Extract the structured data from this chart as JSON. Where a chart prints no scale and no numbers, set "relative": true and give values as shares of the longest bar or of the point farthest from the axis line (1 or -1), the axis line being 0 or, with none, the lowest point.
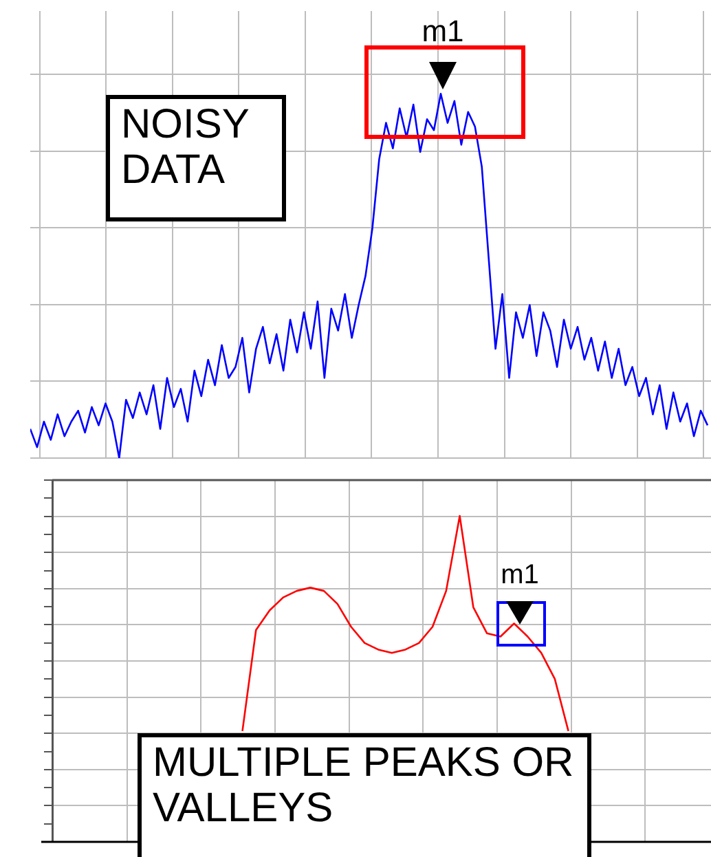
{
  "chart_data": [
    {
      "type": "line",
      "relative": true,
      "grid": true,
      "tick_labels": false,
      "annotations": [
        "m1",
        "NOISY DATA"
      ],
      "categories": [
        null,
        null,
        null,
        null,
        null,
        null,
        null,
        null,
        null,
        null,
        null,
        null,
        null,
        null,
        null,
        null,
        null,
        null,
        null,
        null,
        null,
        null,
        null,
        null,
        null,
        null,
        null,
        null,
        null,
        null,
        null,
        null,
        null,
        null,
        null,
        null,
        null,
        null,
        null,
        null,
        null,
        null,
        null,
        null,
        null,
        null,
        null,
        null,
        null,
        null,
        null,
        null,
        null,
        null,
        null,
        null,
        null,
        null,
        null,
        null,
        null,
        null,
        null,
        null,
        null,
        null,
        null,
        null,
        null,
        null,
        null,
        null,
        null,
        null,
        null,
        null,
        null,
        null,
        null,
        null,
        null,
        null,
        null,
        null,
        null,
        null,
        null,
        null,
        null,
        null,
        null,
        null,
        null,
        null,
        null,
        null,
        null,
        null,
        null,
        null
      ],
      "series": [
        {
          "color": "#0000ff",
          "values": [
            0.08,
            0.03,
            0.1,
            0.05,
            0.12,
            0.06,
            0.1,
            0.13,
            0.07,
            0.14,
            0.09,
            0.15,
            0.1,
            0.0,
            0.16,
            0.11,
            0.18,
            0.12,
            0.2,
            0.08,
            0.22,
            0.14,
            0.19,
            0.1,
            0.24,
            0.17,
            0.27,
            0.2,
            0.31,
            0.22,
            0.25,
            0.33,
            0.18,
            0.3,
            0.36,
            0.26,
            0.34,
            0.24,
            0.38,
            0.29,
            0.4,
            0.3,
            0.43,
            0.22,
            0.41,
            0.35,
            0.45,
            0.33,
            0.42,
            0.5,
            0.63,
            0.82,
            0.92,
            0.85,
            0.96,
            0.88,
            0.97,
            0.84,
            0.93,
            0.9,
            1.0,
            0.92,
            0.98,
            0.86,
            0.95,
            0.91,
            0.8,
            0.55,
            0.3,
            0.45,
            0.22,
            0.4,
            0.33,
            0.42,
            0.28,
            0.4,
            0.35,
            0.25,
            0.38,
            0.3,
            0.36,
            0.27,
            0.33,
            0.24,
            0.32,
            0.22,
            0.3,
            0.2,
            0.25,
            0.17,
            0.22,
            0.12,
            0.2,
            0.08,
            0.18,
            0.1,
            0.15,
            0.06,
            0.13,
            0.09
          ]
        }
      ]
    },
    {
      "type": "line",
      "relative": true,
      "grid": true,
      "tick_labels": false,
      "annotations": [
        "m1",
        "MULTIPLE PEAKS OR VALLEYS"
      ],
      "categories": [
        null,
        null,
        null,
        null,
        null,
        null,
        null,
        null,
        null,
        null,
        null,
        null,
        null,
        null,
        null,
        null,
        null,
        null,
        null,
        null,
        null,
        null,
        null,
        null,
        null,
        null,
        null,
        null,
        null,
        null,
        null,
        null,
        null,
        null,
        null,
        null,
        null,
        null,
        null,
        null,
        null,
        null,
        null,
        null,
        null,
        null,
        null,
        null,
        null
      ],
      "series": [
        {
          "color": "#ff0000",
          "values": [
            null,
            null,
            null,
            null,
            null,
            null,
            null,
            null,
            null,
            null,
            null,
            null,
            null,
            null,
            0.34,
            0.65,
            0.71,
            0.75,
            0.77,
            0.78,
            0.77,
            0.73,
            0.66,
            0.61,
            0.59,
            0.58,
            0.59,
            0.61,
            0.66,
            0.77,
            1.0,
            0.72,
            0.64,
            0.63,
            0.67,
            0.63,
            0.58,
            0.5,
            0.34,
            null,
            null,
            null,
            null,
            null,
            null,
            null,
            null,
            null,
            null
          ]
        }
      ]
    }
  ]
}
